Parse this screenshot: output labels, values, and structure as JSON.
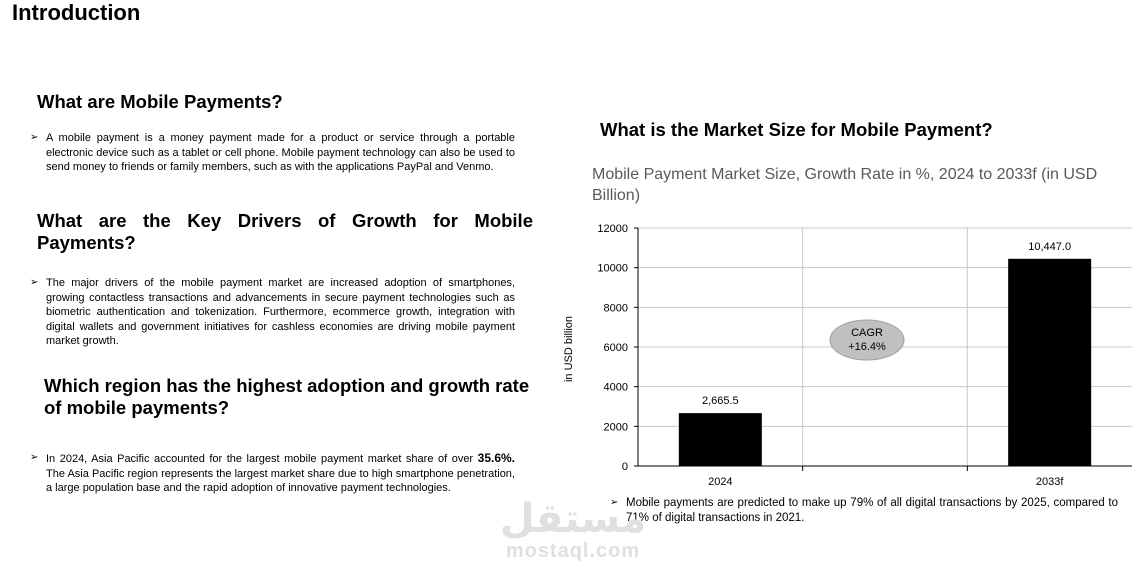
{
  "page": {
    "title": "Introduction"
  },
  "left": {
    "sections": [
      {
        "heading": "What are Mobile Payments?",
        "bullet": "A mobile payment is a money payment made for a product or service through a portable electronic device such as a tablet or cell phone. Mobile payment technology can also be used to send money to friends or family members, such as with the applications PayPal and Venmo."
      },
      {
        "heading": "What are the Key Drivers of Growth for Mobile Payments?",
        "bullet": "The major drivers of the mobile payment market are increased adoption of smartphones, growing contactless transactions and advancements in secure payment technologies such as biometric authentication and tokenization. Furthermore, ecommerce growth, integration with digital wallets and government initiatives for cashless economies are driving mobile payment market growth."
      },
      {
        "heading": "Which region has the highest adoption and growth rate of mobile payments?",
        "bullet_pre": "In 2024, Asia Pacific accounted for the largest mobile payment market share of over ",
        "bullet_strong": "35.6%.",
        "bullet_post": " The Asia Pacific region represents the largest market share due to high smartphone penetration, a large population base and the rapid adoption of innovative payment technologies."
      }
    ]
  },
  "right": {
    "heading": "What is the Market Size for Mobile Payment?",
    "note": "Mobile payments are predicted to make up 79% of all digital transactions by 2025, compared to 71% of digital transactions in 2021."
  },
  "bullet_glyph": "➢",
  "watermark": {
    "arabic": "مستقل",
    "latin": "mostaql.com"
  },
  "chart_data": {
    "type": "bar",
    "title": "Mobile Payment Market Size, Growth Rate in %, 2024 to 2033f (in USD Billion)",
    "ylabel": "in USD billion",
    "xlabel": "",
    "ylim": [
      0,
      12000
    ],
    "yticks": [
      "0",
      "2000",
      "4000",
      "6000",
      "8000",
      "10000",
      "12000"
    ],
    "categories": [
      "2024",
      "2033f"
    ],
    "values": [
      2665.5,
      10447.0
    ],
    "data_labels": [
      "2,665.5",
      "10,447.0"
    ],
    "bar_color": "#000000",
    "grid": true,
    "annotation": {
      "line1": "CAGR",
      "line2": "+16.4%"
    }
  }
}
